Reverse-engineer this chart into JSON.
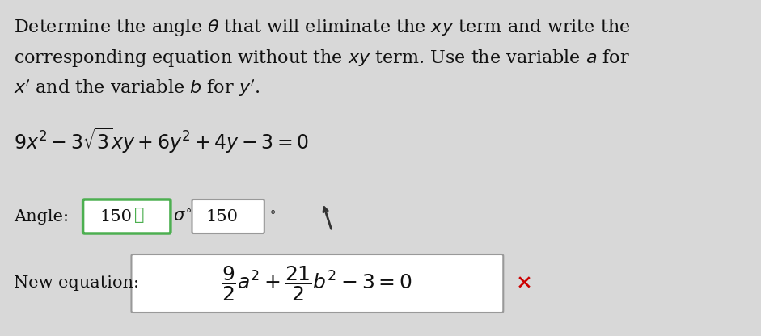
{
  "background_color": "#d8d8d8",
  "text_color": "#111111",
  "green_color": "#4caf50",
  "gray_border": "#999999",
  "cross_color": "#cc0000",
  "font_size_body": 16,
  "font_size_eq": 17,
  "font_size_answer": 15,
  "font_size_label": 15,
  "line1": "Determine the angle $\\theta$ that will eliminate the $xy$ term and write the",
  "line2": "corresponding equation without the $xy$ term. Use the variable $a$ for",
  "line3": "$x'$ and the variable $b$ for $y'$.",
  "equation": "$9x^2 - 3\\sqrt{3}xy + 6y^2 + 4y - 3 = 0$",
  "angle_label": "Angle:",
  "box1_value": "150",
  "checkmark": "✓",
  "sigma_symbol": "$\\sigma^{\\circ}$",
  "box2_value": "150",
  "degree": "$^\\circ$",
  "new_eq_label": "New equation:",
  "new_eq": "$\\dfrac{9}{2}a^2 + \\dfrac{21}{2}b^2 - 3 = 0$",
  "cross": "×"
}
